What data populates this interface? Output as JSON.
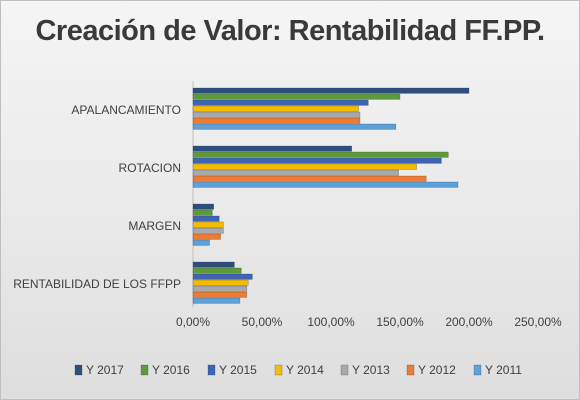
{
  "chart_data": {
    "type": "bar",
    "orientation": "horizontal",
    "title": "Creación de Valor: Rentabilidad FF.PP.",
    "categories": [
      "RENTABILIDAD DE LOS FFPP",
      "MARGEN",
      "ROTACION",
      "APALANCAMIENTO"
    ],
    "xlim": [
      0,
      250
    ],
    "xticks": [
      "0,00%",
      "50,00%",
      "100,00%",
      "150,00%",
      "200,00%",
      "250,00%"
    ],
    "grid": false,
    "legend_position": "bottom",
    "series": [
      {
        "name": "Y 2017",
        "color": "#2e4e7e",
        "values": [
          30,
          15,
          115,
          200
        ]
      },
      {
        "name": "Y 2016",
        "color": "#5f9a3a",
        "values": [
          35,
          14,
          185,
          150
        ]
      },
      {
        "name": "Y 2015",
        "color": "#3f64b3",
        "values": [
          43,
          19,
          180,
          127
        ]
      },
      {
        "name": "Y 2014",
        "color": "#f5bd00",
        "values": [
          40,
          22,
          162,
          120
        ]
      },
      {
        "name": "Y 2013",
        "color": "#a9a9a9",
        "values": [
          39,
          22,
          149,
          121
        ]
      },
      {
        "name": "Y 2012",
        "color": "#ec7b33",
        "values": [
          39,
          20,
          169,
          121
        ]
      },
      {
        "name": "Y 2011",
        "color": "#5ea0d8",
        "values": [
          34,
          12,
          192,
          147
        ]
      }
    ]
  }
}
